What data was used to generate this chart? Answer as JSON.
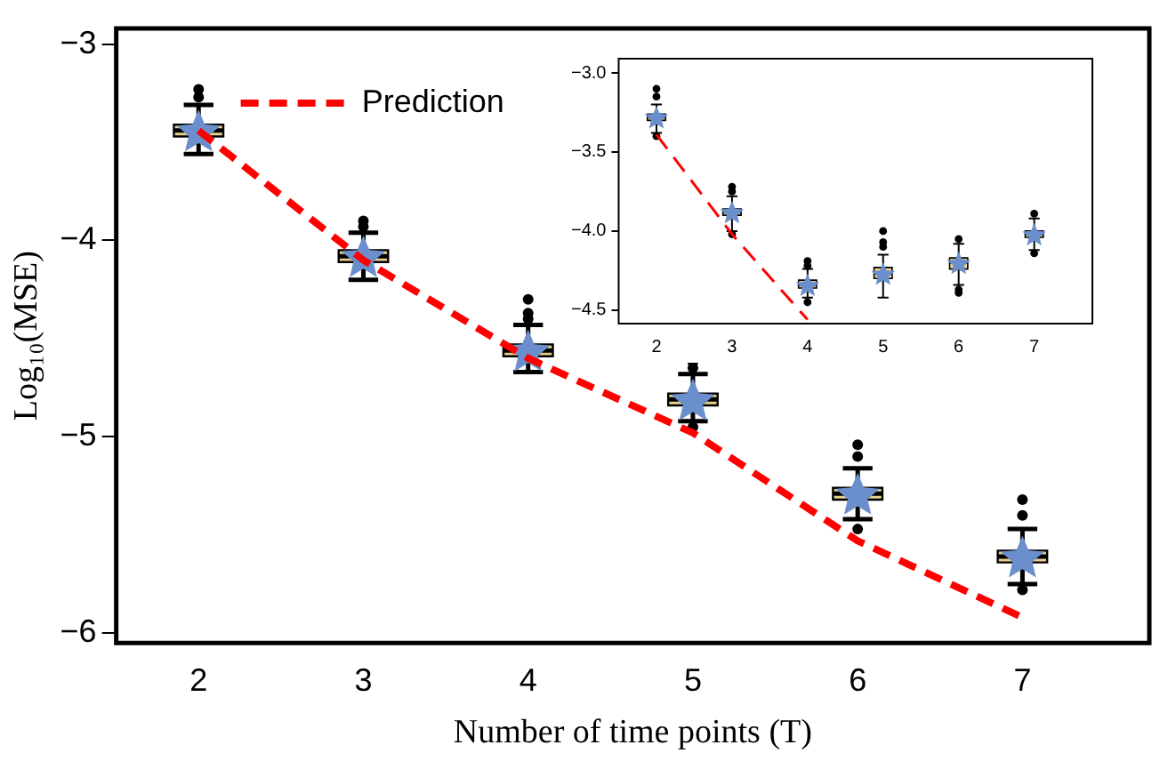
{
  "chart_data": [
    {
      "type": "box",
      "xlabel": "Number of time points (T)",
      "ylabel": "Log₁₀(MSE)",
      "categories": [
        "2",
        "3",
        "4",
        "5",
        "6",
        "7"
      ],
      "ylim": [
        -6.05,
        -2.92
      ],
      "yticks": [
        {
          "value": -3,
          "label": "−3"
        },
        {
          "value": -4,
          "label": "−4"
        },
        {
          "value": -5,
          "label": "−5"
        },
        {
          "value": -6,
          "label": "−6"
        }
      ],
      "grid": false,
      "legend": "top left",
      "series": [
        {
          "type": "box",
          "color": "#e8d08c",
          "marker": "star",
          "boxes": [
            {
              "low": -3.56,
              "q1": -3.47,
              "median": -3.44,
              "q3": -3.41,
              "high": -3.31,
              "mean": -3.44,
              "outliers": [
                -3.27,
                -3.23
              ]
            },
            {
              "low": -4.2,
              "q1": -4.11,
              "median": -4.08,
              "q3": -4.05,
              "high": -3.96,
              "mean": -4.08,
              "outliers": [
                -3.93,
                -3.9
              ]
            },
            {
              "low": -4.67,
              "q1": -4.59,
              "median": -4.56,
              "q3": -4.53,
              "high": -4.43,
              "mean": -4.56,
              "outliers": [
                -4.4,
                -4.37,
                -4.3
              ]
            },
            {
              "low": -4.92,
              "q1": -4.84,
              "median": -4.81,
              "q3": -4.78,
              "high": -4.68,
              "mean": -4.81,
              "outliers": [
                -4.65,
                -4.62,
                -4.95
              ]
            },
            {
              "low": -5.42,
              "q1": -5.32,
              "median": -5.29,
              "q3": -5.26,
              "high": -5.16,
              "mean": -5.29,
              "outliers": [
                -5.1,
                -5.04,
                -5.47
              ]
            },
            {
              "low": -5.75,
              "q1": -5.64,
              "median": -5.61,
              "q3": -5.58,
              "high": -5.47,
              "mean": -5.61,
              "outliers": [
                -5.4,
                -5.32,
                -5.78
              ]
            }
          ]
        },
        {
          "type": "line",
          "name": "Prediction",
          "color": "#ff0000",
          "line_style": "dashed",
          "values": [
            -3.44,
            -4.1,
            -4.6,
            -4.98,
            -5.53,
            -5.92
          ]
        }
      ]
    },
    {
      "type": "box",
      "categories": [
        "2",
        "3",
        "4",
        "5",
        "6",
        "7"
      ],
      "ylim": [
        -4.585,
        -2.91
      ],
      "yticks": [
        {
          "value": -3,
          "label": "−3.0"
        },
        {
          "value": -3.5,
          "label": "−3.5"
        },
        {
          "value": -4,
          "label": "−4.0"
        },
        {
          "value": -4.5,
          "label": "−4.5"
        }
      ],
      "grid": false,
      "legend": false,
      "series": [
        {
          "type": "box",
          "color": "#e8d08c",
          "marker": "star",
          "boxes": [
            {
              "low": -3.38,
              "q1": -3.3,
              "median": -3.28,
              "q3": -3.26,
              "high": -3.2,
              "mean": -3.28,
              "outliers": [
                -3.15,
                -3.1,
                -3.4
              ]
            },
            {
              "low": -4.0,
              "q1": -3.9,
              "median": -3.88,
              "q3": -3.86,
              "high": -3.78,
              "mean": -3.88,
              "outliers": [
                -3.75,
                -3.72,
                -4.02
              ]
            },
            {
              "low": -4.42,
              "q1": -4.36,
              "median": -4.34,
              "q3": -4.31,
              "high": -4.24,
              "mean": -4.34,
              "outliers": [
                -4.22,
                -4.19,
                -4.45
              ]
            },
            {
              "low": -4.42,
              "q1": -4.3,
              "median": -4.27,
              "q3": -4.23,
              "high": -4.15,
              "mean": -4.27,
              "outliers": [
                -4.1,
                -4.07,
                -4.0
              ]
            },
            {
              "low": -4.34,
              "q1": -4.24,
              "median": -4.2,
              "q3": -4.17,
              "high": -4.08,
              "mean": -4.2,
              "outliers": [
                -4.05,
                -4.37,
                -4.39
              ]
            },
            {
              "low": -4.12,
              "q1": -4.04,
              "median": -4.02,
              "q3": -4.0,
              "high": -3.92,
              "mean": -4.02,
              "outliers": [
                -3.89,
                -4.14
              ]
            }
          ]
        },
        {
          "type": "line",
          "color": "#ff0000",
          "line_style": "dashed",
          "values": [
            -3.39,
            -4.02,
            -4.56,
            null,
            null,
            null
          ]
        }
      ]
    }
  ]
}
